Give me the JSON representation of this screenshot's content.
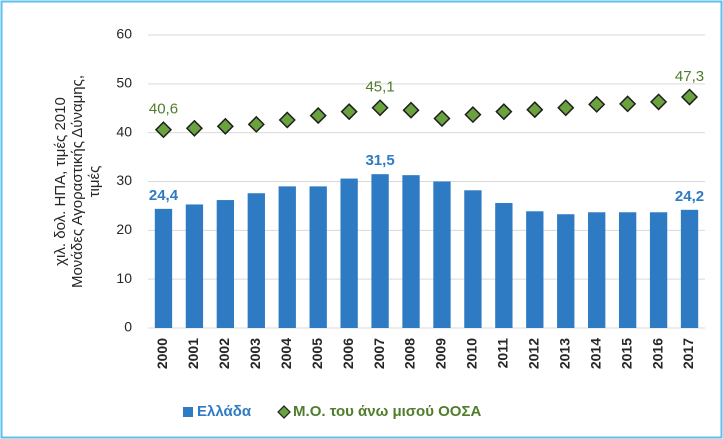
{
  "chart_data": {
    "type": "bar",
    "ylabel": [
      "χιλ. δολ. ΗΠΑ, τιμές 2010",
      "Μονάδες Αγοραστικής Δύναμης,",
      "τιμές"
    ],
    "categories": [
      "2000",
      "2001",
      "2002",
      "2003",
      "2004",
      "2005",
      "2006",
      "2007",
      "2008",
      "2009",
      "2010",
      "2011",
      "2012",
      "2013",
      "2014",
      "2015",
      "2016",
      "2017"
    ],
    "series": [
      {
        "name": "Ελλάδα",
        "type": "bar",
        "color": "#2e7bc4",
        "label_color": "#2e7bc4",
        "values": [
          24.4,
          25.3,
          26.2,
          27.6,
          29.0,
          29.0,
          30.6,
          31.5,
          31.3,
          30.0,
          28.2,
          25.6,
          23.9,
          23.3,
          23.7,
          23.7,
          23.7,
          24.2
        ],
        "value_labels": [
          "24,4",
          null,
          null,
          null,
          null,
          null,
          null,
          "31,5",
          null,
          null,
          null,
          null,
          null,
          null,
          null,
          null,
          null,
          "24,2"
        ]
      },
      {
        "name": "Μ.Ο. του άνω μισού ΟΟΣΑ",
        "type": "scatter",
        "marker": "diamond",
        "color": "#6aa33e",
        "label_color": "#4f7d2b",
        "values": [
          40.6,
          40.9,
          41.3,
          41.7,
          42.6,
          43.5,
          44.3,
          45.1,
          44.6,
          42.9,
          43.7,
          44.3,
          44.7,
          45.1,
          45.8,
          45.9,
          46.3,
          47.3
        ],
        "value_labels": [
          "40,6",
          null,
          null,
          null,
          null,
          null,
          null,
          "45,1",
          null,
          null,
          null,
          null,
          null,
          null,
          null,
          null,
          null,
          "47,3"
        ]
      }
    ],
    "ylim": [
      0,
      60
    ],
    "yticks": [
      0,
      10,
      20,
      30,
      40,
      50,
      60
    ],
    "grid": true
  }
}
